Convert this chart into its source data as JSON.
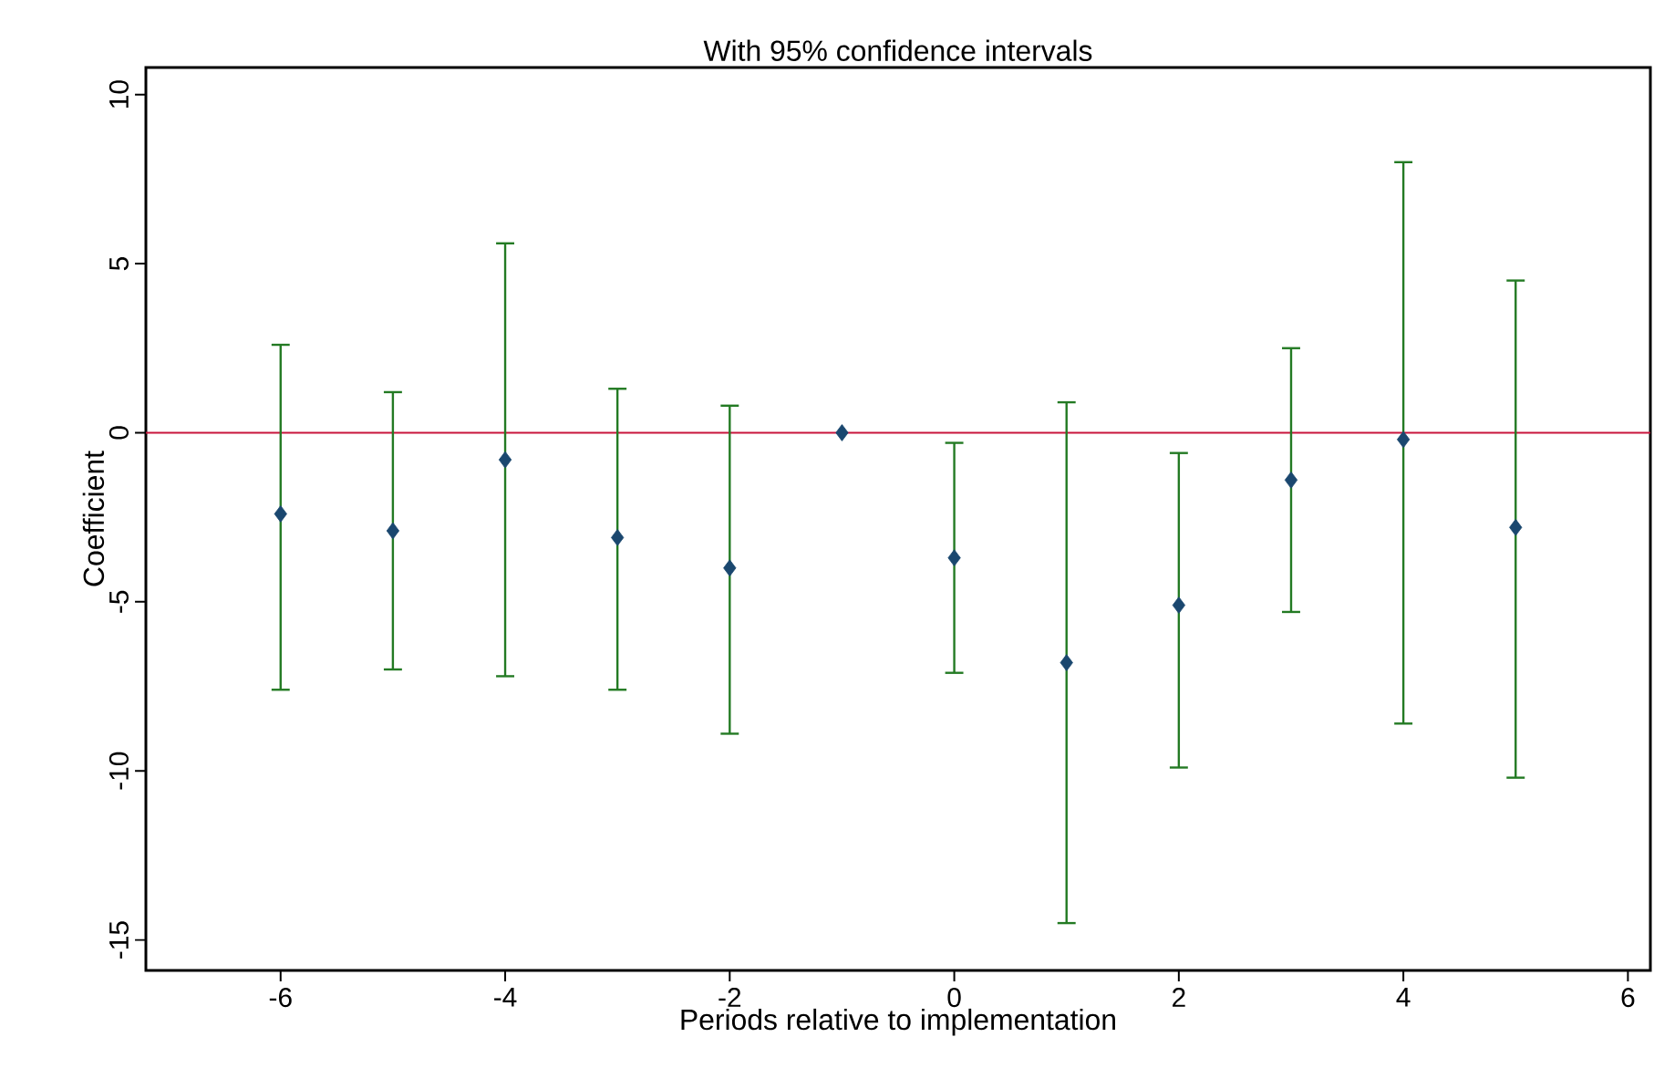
{
  "chart_data": {
    "type": "scatter",
    "title": "With 95% confidence intervals",
    "xlabel": "Periods relative to implementation",
    "ylabel": "Coefficient",
    "x": [
      -6,
      -5,
      -4,
      -3,
      -2,
      -1,
      0,
      1,
      2,
      3,
      4,
      5
    ],
    "series": [
      {
        "color": "#1a476f",
        "values": [
          -2.4,
          -2.9,
          -0.8,
          -3.1,
          -4.0,
          0,
          -3.7,
          -6.8,
          -5.1,
          -1.4,
          -0.2,
          -2.8
        ],
        "errors": [
          [
            -7.6,
            2.6
          ],
          [
            -7.0,
            1.2
          ],
          [
            -7.2,
            5.6
          ],
          [
            -7.6,
            1.3
          ],
          [
            -8.9,
            0.8
          ],
          null,
          [
            -7.1,
            -0.3
          ],
          [
            -14.5,
            0.9
          ],
          [
            -9.9,
            -0.6
          ],
          [
            -5.3,
            2.5
          ],
          [
            -8.6,
            8.0
          ],
          [
            -10.2,
            4.5
          ]
        ]
      }
    ],
    "marker": "diamond",
    "grid": false,
    "xlim": [
      -7.2,
      6.2
    ],
    "ylim": [
      -15.9,
      10.8
    ],
    "xticks": [
      -6,
      -4,
      -2,
      0,
      2,
      4,
      6
    ],
    "yticks": [
      -15,
      -10,
      -5,
      0,
      5,
      10
    ],
    "ref_lines": [
      {
        "axis": "y",
        "value": 0,
        "color": "#c8143c"
      }
    ]
  }
}
